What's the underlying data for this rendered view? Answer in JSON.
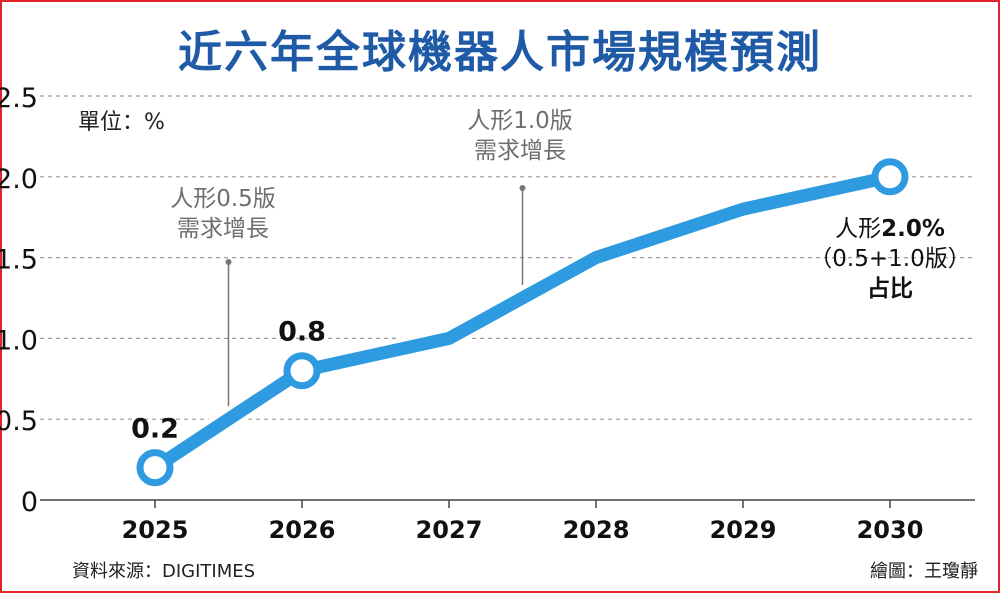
{
  "title": "近六年全球機器人市場規模預測",
  "unit_label": "單位：%",
  "source": "資料來源：DIGITIMES",
  "credit": "繪圖：王瓊靜",
  "annotations": {
    "v05": {
      "line1": "人形0.5版",
      "line2": "需求增長"
    },
    "v10": {
      "line1": "人形1.0版",
      "line2": "需求增長"
    },
    "end": {
      "prefix": "人形",
      "value": "2.0%",
      "line2": "（0.5+1.0版）",
      "line3": "占比"
    }
  },
  "colors": {
    "title": "#1f5aa6",
    "line": "#2e9be0",
    "frame": "#e3242b",
    "grid": "#999999"
  },
  "chart_data": {
    "type": "line",
    "categories": [
      "2025",
      "2026",
      "2027",
      "2028",
      "2029",
      "2030"
    ],
    "x_labels": [
      "2025",
      "2026",
      "2027",
      "2028",
      "2029",
      "2030"
    ],
    "y_ticks": [
      "0",
      "0.5",
      "1.0",
      "1.5",
      "2.0",
      "2.5"
    ],
    "ylim": [
      0,
      2.5
    ],
    "grid": true,
    "series": [
      {
        "values": [
          0.2,
          0.8,
          1.0,
          1.5,
          1.8,
          2.0
        ],
        "markers": [
          true,
          true,
          false,
          false,
          false,
          true
        ],
        "data_labels": [
          "0.2",
          "0.8",
          "",
          "",
          "",
          ""
        ]
      }
    ]
  }
}
